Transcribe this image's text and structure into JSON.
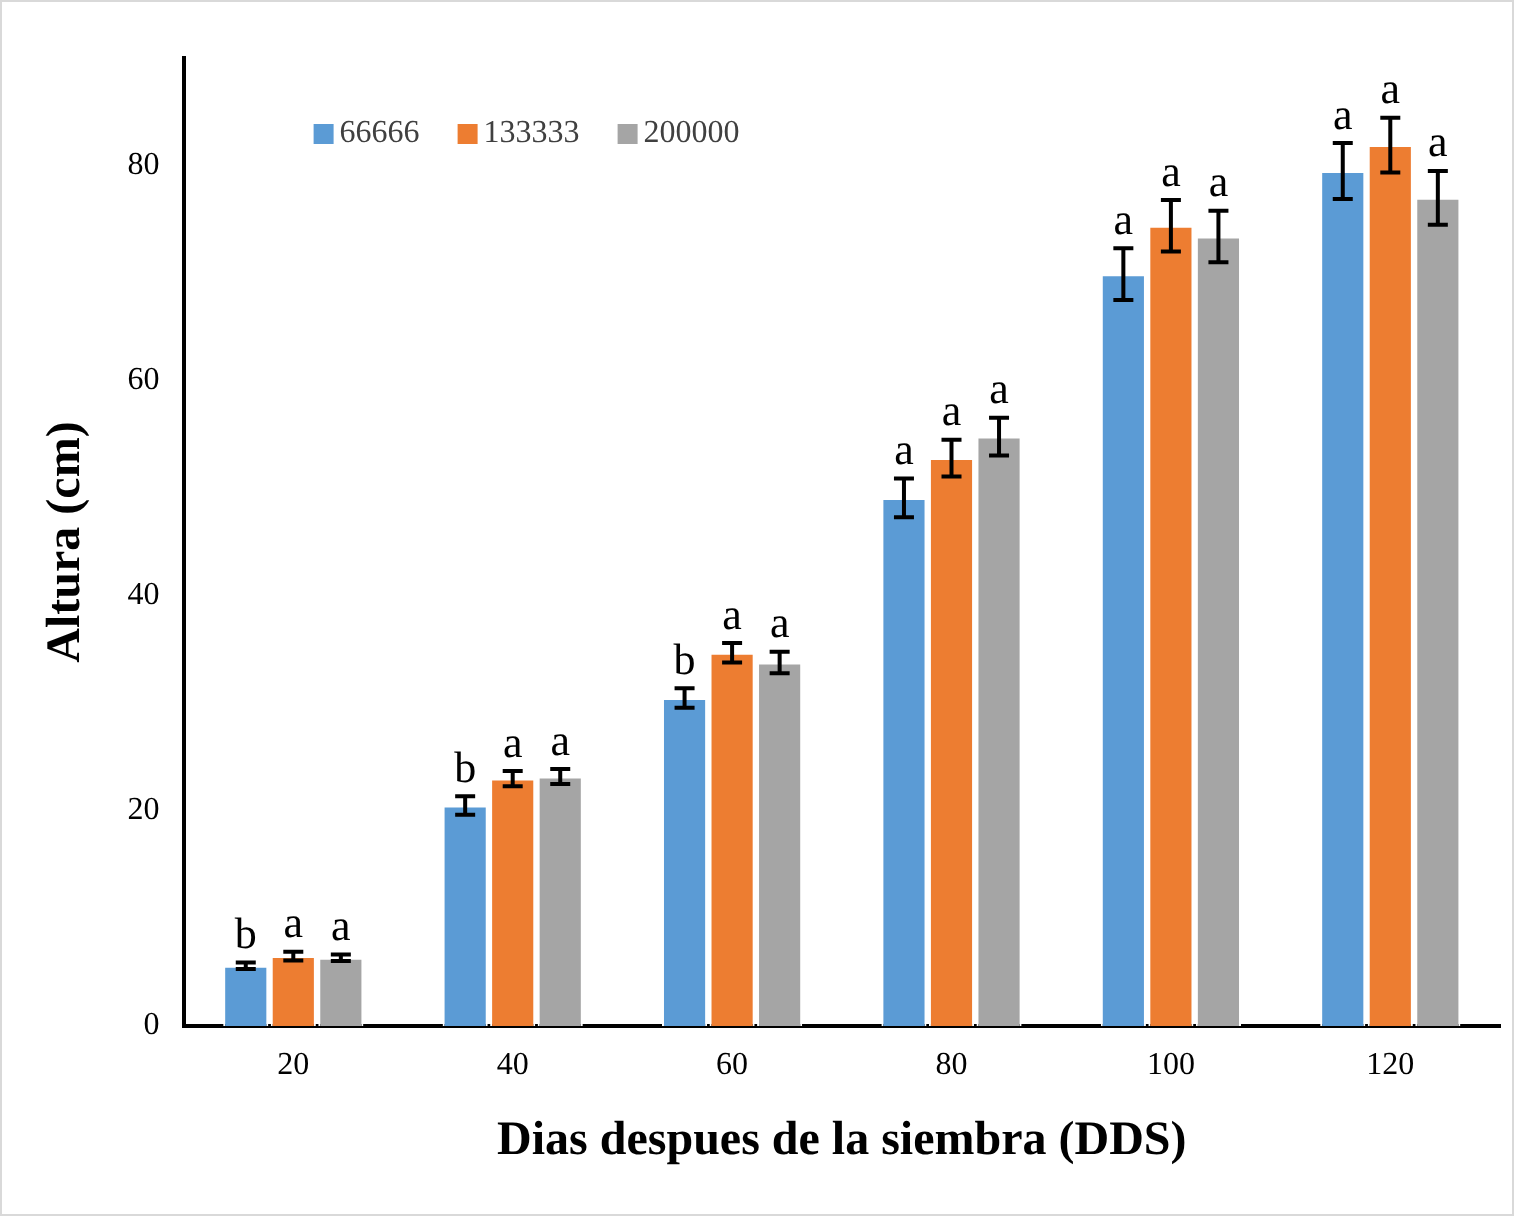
{
  "chart_data": {
    "type": "bar",
    "xlabel": "Dias despues de la siembra (DDS)",
    "ylabel": "Altura (cm)",
    "categories": [
      "20",
      "40",
      "60",
      "80",
      "100",
      "120"
    ],
    "series": [
      {
        "name": "66666",
        "color": "#5b9bd5",
        "values": [
          5.6,
          20.5,
          30.5,
          49.1,
          69.9,
          79.5
        ],
        "errors": [
          0.3,
          0.85,
          0.9,
          1.8,
          2.4,
          2.6
        ],
        "value_labels": [
          "b",
          "b",
          "b",
          "a",
          "a",
          "a"
        ]
      },
      {
        "name": "133333",
        "color": "#ed7d31",
        "values": [
          6.5,
          23.0,
          34.7,
          52.8,
          74.4,
          81.9
        ],
        "errors": [
          0.4,
          0.7,
          0.9,
          1.7,
          2.4,
          2.55
        ],
        "value_labels": [
          "a",
          "a",
          "a",
          "a",
          "a",
          "a"
        ]
      },
      {
        "name": "200000",
        "color": "#a5a5a5",
        "values": [
          6.35,
          23.2,
          33.8,
          54.8,
          73.4,
          77.0
        ],
        "errors": [
          0.3,
          0.7,
          1.0,
          1.75,
          2.4,
          2.5
        ],
        "value_labels": [
          "a",
          "a",
          "a",
          "a",
          "a",
          "a"
        ]
      }
    ],
    "ylim": [
      0,
      90
    ],
    "yticks": [
      0,
      20,
      40,
      60,
      80
    ],
    "grid": false,
    "legend": "top left"
  }
}
